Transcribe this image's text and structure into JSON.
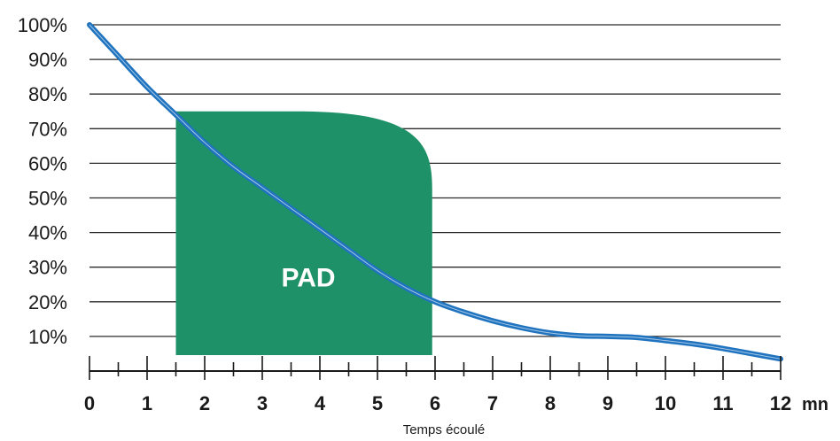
{
  "chart_data": {
    "type": "line",
    "xlabel": "Temps écoulé",
    "x_unit": "mn",
    "ylabel": "",
    "xlim": [
      0,
      12
    ],
    "ylim": [
      0,
      100
    ],
    "x_ticks": [
      "0",
      "1",
      "2",
      "3",
      "4",
      "5",
      "6",
      "7",
      "8",
      "9",
      "10",
      "11",
      "12"
    ],
    "y_ticks": [
      "10%",
      "20%",
      "30%",
      "40%",
      "50%",
      "60%",
      "70%",
      "80%",
      "90%",
      "100%"
    ],
    "grid": true,
    "series": [
      {
        "color": "#1f73bf",
        "x": [
          0,
          0.5,
          1,
          1.5,
          2,
          2.5,
          3,
          3.5,
          4,
          4.5,
          5,
          5.5,
          6,
          6.5,
          7,
          7.5,
          8,
          8.5,
          9,
          9.5,
          10,
          10.5,
          11,
          11.5,
          12
        ],
        "y": [
          100,
          91,
          82,
          74,
          66,
          59,
          53,
          47,
          41,
          35,
          29,
          24,
          20,
          17,
          14.5,
          12.5,
          11,
          10.2,
          10,
          9.7,
          8.8,
          7.8,
          6.5,
          5,
          3.5
        ]
      }
    ],
    "region": {
      "label": "PAD",
      "color": "#1e9168",
      "x_start": 1.5,
      "x_end": 5.95,
      "y_top": 75
    }
  }
}
